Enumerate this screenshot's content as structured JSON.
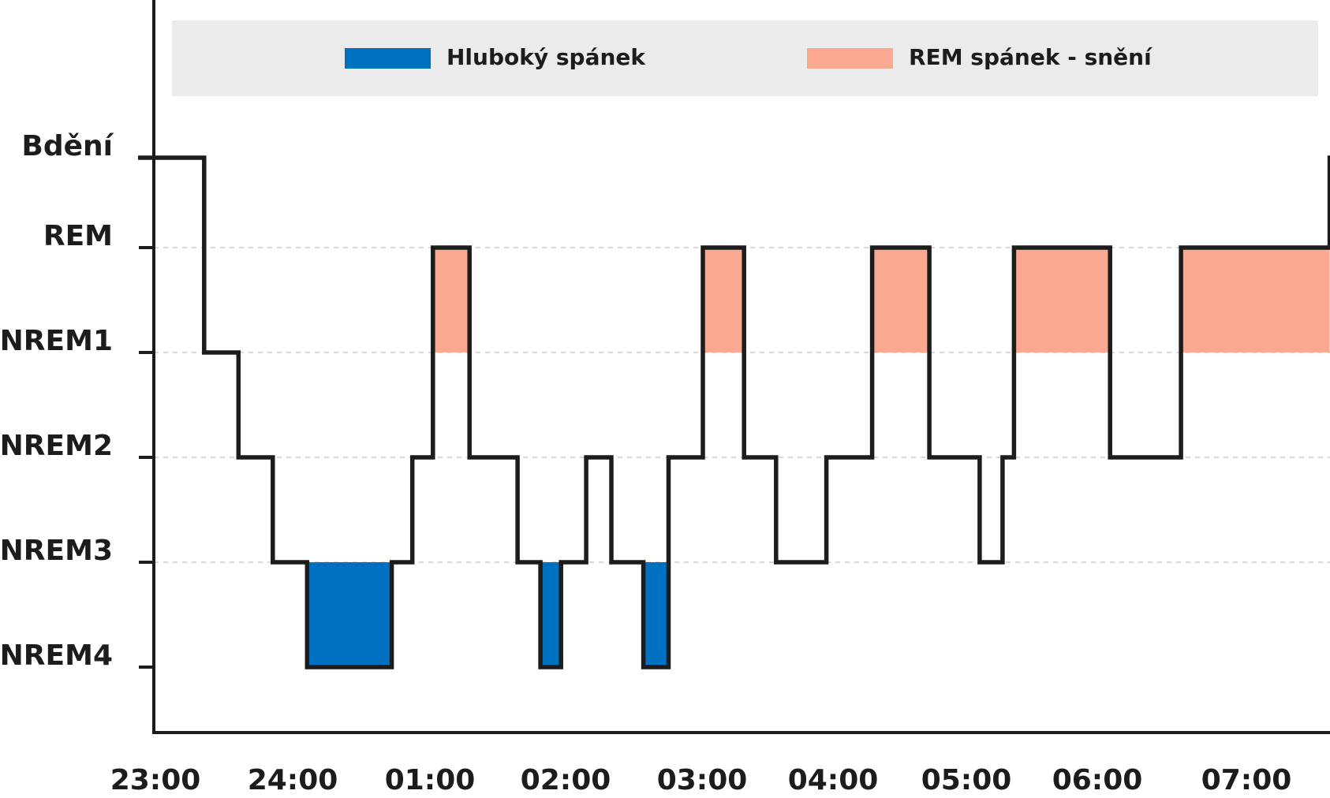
{
  "chart_data": {
    "type": "line",
    "step": true,
    "title": "",
    "xlabel": "",
    "ylabel": "",
    "x_ticks": [
      "23:00",
      "24:00",
      "01:00",
      "02:00",
      "03:00",
      "04:00",
      "05:00",
      "06:00",
      "07:00"
    ],
    "x_range_hours": [
      0,
      8.3
    ],
    "y_categories": [
      "Bdění",
      "REM",
      "NREM1",
      "NREM2",
      "NREM3",
      "NREM4"
    ],
    "grid": "horizontal dashed at REM, NREM1, NREM2, NREM3",
    "legend": {
      "position": "top",
      "items": [
        {
          "key": "deep",
          "label": "Hluboký spánek",
          "color": "#0070c0"
        },
        {
          "key": "rem",
          "label": "REM spánek - snění",
          "color": "#f9a98f"
        }
      ]
    },
    "hypnogram": [
      {
        "start": "23:00",
        "end": "23:22",
        "stage": "Bdění"
      },
      {
        "start": "23:22",
        "end": "23:37",
        "stage": "NREM1"
      },
      {
        "start": "23:37",
        "end": "23:52",
        "stage": "NREM2"
      },
      {
        "start": "23:52",
        "end": "00:07",
        "stage": "NREM3"
      },
      {
        "start": "00:07",
        "end": "00:44",
        "stage": "NREM4"
      },
      {
        "start": "00:44",
        "end": "00:53",
        "stage": "NREM3"
      },
      {
        "start": "00:53",
        "end": "01:02",
        "stage": "NREM2"
      },
      {
        "start": "01:02",
        "end": "01:18",
        "stage": "REM"
      },
      {
        "start": "01:18",
        "end": "01:39",
        "stage": "NREM2"
      },
      {
        "start": "01:39",
        "end": "01:49",
        "stage": "NREM3"
      },
      {
        "start": "01:49",
        "end": "01:58",
        "stage": "NREM4"
      },
      {
        "start": "01:58",
        "end": "02:09",
        "stage": "NREM3"
      },
      {
        "start": "02:09",
        "end": "02:20",
        "stage": "NREM2"
      },
      {
        "start": "02:20",
        "end": "02:34",
        "stage": "NREM3"
      },
      {
        "start": "02:34",
        "end": "02:45",
        "stage": "NREM4"
      },
      {
        "start": "02:45",
        "end": "03:00",
        "stage": "NREM2"
      },
      {
        "start": "03:00",
        "end": "03:18",
        "stage": "REM"
      },
      {
        "start": "03:18",
        "end": "03:32",
        "stage": "NREM2"
      },
      {
        "start": "03:32",
        "end": "03:54",
        "stage": "NREM3"
      },
      {
        "start": "03:54",
        "end": "04:14",
        "stage": "NREM2"
      },
      {
        "start": "04:14",
        "end": "04:39",
        "stage": "REM"
      },
      {
        "start": "04:39",
        "end": "05:01",
        "stage": "NREM2"
      },
      {
        "start": "05:01",
        "end": "05:11",
        "stage": "NREM3"
      },
      {
        "start": "05:11",
        "end": "05:16",
        "stage": "NREM2"
      },
      {
        "start": "05:16",
        "end": "05:58",
        "stage": "REM"
      },
      {
        "start": "05:58",
        "end": "06:29",
        "stage": "NREM2"
      },
      {
        "start": "06:29",
        "end": "07:34",
        "stage": "REM"
      },
      {
        "start": "07:34",
        "end": "07:49",
        "stage": "Bdění"
      }
    ],
    "shaded_regions": [
      {
        "type": "deep",
        "start": "00:07",
        "end": "00:44",
        "from": "NREM3",
        "to": "NREM4"
      },
      {
        "type": "deep",
        "start": "01:49",
        "end": "01:58",
        "from": "NREM3",
        "to": "NREM4"
      },
      {
        "type": "deep",
        "start": "02:34",
        "end": "02:45",
        "from": "NREM3",
        "to": "NREM4"
      },
      {
        "type": "rem",
        "start": "01:02",
        "end": "01:18",
        "from": "REM",
        "to": "NREM1"
      },
      {
        "type": "rem",
        "start": "03:00",
        "end": "03:18",
        "from": "REM",
        "to": "NREM1"
      },
      {
        "type": "rem",
        "start": "04:14",
        "end": "04:39",
        "from": "REM",
        "to": "NREM1"
      },
      {
        "type": "rem",
        "start": "05:16",
        "end": "05:58",
        "from": "REM",
        "to": "NREM1"
      },
      {
        "type": "rem",
        "start": "06:29",
        "end": "07:34",
        "from": "REM",
        "to": "NREM1"
      }
    ],
    "colors": {
      "line": "#1c1c1c",
      "legend_background": "#ebebeb",
      "grid": "#cccccc"
    }
  }
}
